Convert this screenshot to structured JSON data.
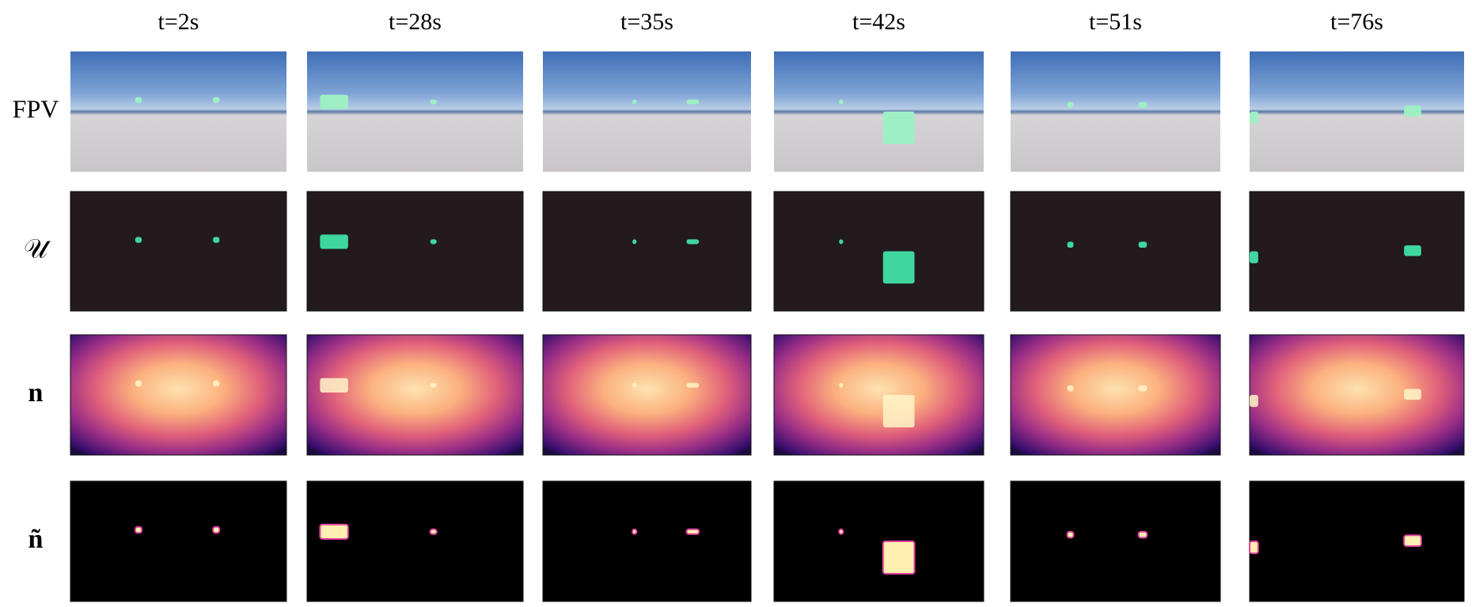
{
  "columns": [
    "t=2s",
    "t=28s",
    "t=35s",
    "t=42s",
    "t=51s",
    "t=76s"
  ],
  "rows": [
    "FPV",
    "𝒰",
    "n",
    "ñ"
  ]
}
